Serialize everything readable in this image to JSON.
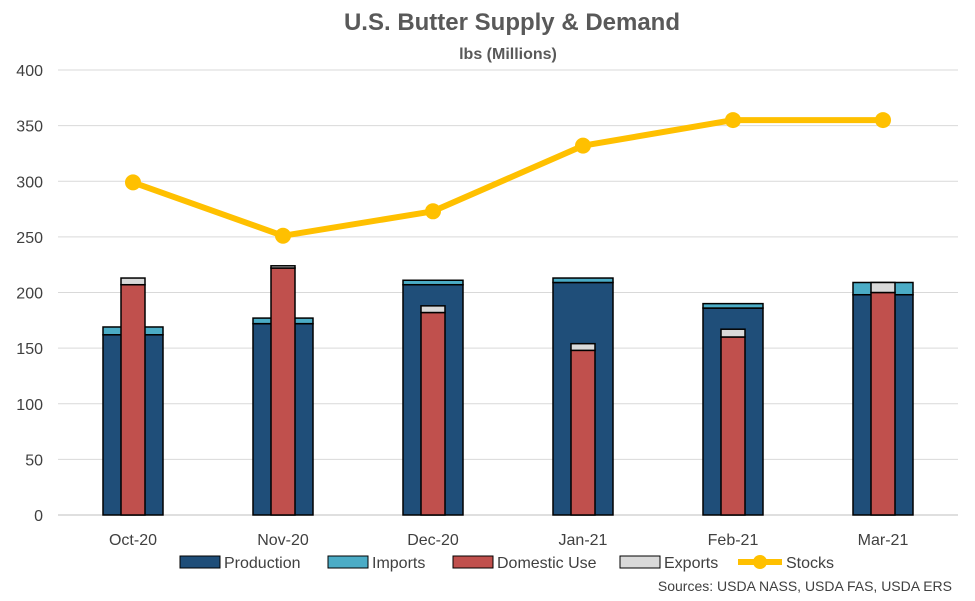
{
  "chart_data": {
    "type": "bar",
    "title": "U.S. Butter Supply & Demand",
    "subtitle": "lbs (Millions)",
    "categories": [
      "Oct-20",
      "Nov-20",
      "Dec-20",
      "Jan-21",
      "Feb-21",
      "Mar-21"
    ],
    "ylim": [
      0,
      400
    ],
    "yticks": [
      "0",
      "50",
      "100",
      "150",
      "200",
      "250",
      "300",
      "350",
      "400"
    ],
    "grid": true,
    "legend_position": "bottom",
    "supply_series": [
      {
        "name": "Production",
        "color": "#1F4E79",
        "values": [
          162,
          172,
          207,
          209,
          186,
          198
        ]
      },
      {
        "name": "Imports",
        "color": "#4BACC6",
        "values": [
          7,
          5,
          4,
          4,
          4,
          11
        ]
      }
    ],
    "demand_series": [
      {
        "name": "Domestic Use",
        "color": "#C0504D",
        "values": [
          207,
          222,
          182,
          148,
          160,
          200
        ]
      },
      {
        "name": "Exports",
        "color": "#D9D9D9",
        "values": [
          6,
          2,
          6,
          6,
          7,
          9
        ]
      }
    ],
    "line_series": {
      "name": "Stocks",
      "color": "#FFC000",
      "values": [
        299,
        251,
        273,
        332,
        355,
        355
      ]
    },
    "legend": [
      "Production",
      "Imports",
      "Domestic Use",
      "Exports",
      "Stocks"
    ],
    "source_note": "Sources: USDA NASS, USDA FAS, USDA ERS"
  }
}
